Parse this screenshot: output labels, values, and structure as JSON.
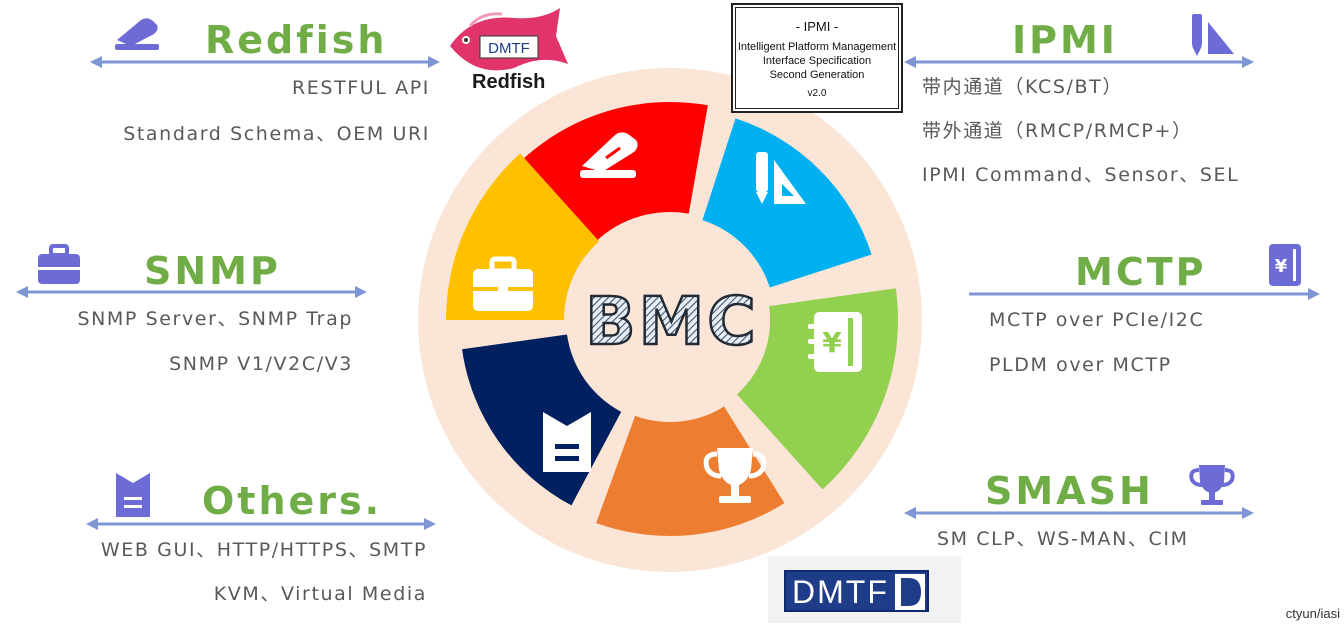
{
  "center": {
    "label": "BMC"
  },
  "sections": {
    "redfish": {
      "title": "Redfish",
      "items": [
        "RESTFUL API",
        "Standard Schema、OEM URI"
      ],
      "icon": "stapler-icon"
    },
    "ipmi": {
      "title": "IPMI",
      "items": [
        "带内通道（KCS/BT）",
        "带外通道（RMCP/RMCP+）",
        "IPMI Command、Sensor、SEL"
      ],
      "icon": "pencil-ruler-icon"
    },
    "snmp": {
      "title": "SNMP",
      "items": [
        "SNMP Server、SNMP Trap",
        "SNMP V1/V2C/V3"
      ],
      "icon": "briefcase-icon"
    },
    "mctp": {
      "title": "MCTP",
      "items": [
        "MCTP over PCIe/I2C",
        "PLDM over MCTP"
      ],
      "icon": "notebook-yen-icon"
    },
    "others": {
      "title": "Others.",
      "items": [
        "WEB GUI、HTTP/HTTPS、SMTP",
        "KVM、Virtual Media"
      ],
      "icon": "document-icon"
    },
    "smash": {
      "title": "SMASH",
      "items": [
        "SM CLP、WS-MAN、CIM"
      ],
      "icon": "trophy-icon"
    }
  },
  "ipmi_spec": {
    "title": "- IPMI -",
    "lines": [
      "Intelligent Platform Management",
      "Interface Specification",
      "Second Generation"
    ],
    "version": "v2.0"
  },
  "logos": {
    "redfish": {
      "badge": "DMTF",
      "word": "Redfish"
    },
    "dmtf": {
      "text": "DMTF"
    }
  },
  "citation": "ctyun/iasi",
  "colors": {
    "title_green": "#70ad47",
    "arrow": "#7e96d4",
    "icon_purple": "#6d6cd6",
    "red": "#ff0000",
    "cyan": "#00b0f0",
    "green": "#92d050",
    "orange": "#ed7d31",
    "navy": "#002060",
    "yellow": "#ffc000",
    "connector": "#4472c4",
    "ring_bg": "#fbe5d6"
  }
}
